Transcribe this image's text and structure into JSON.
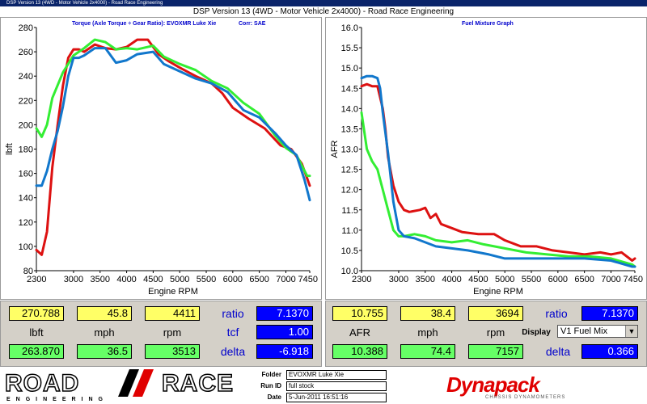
{
  "window": {
    "titlebar": "DSP Version 13 (4WD - Motor Vehicle 2x4000) - Road Race Engineering",
    "title": "DSP Version 13 (4WD - Motor Vehicle 2x4000) - Road Race Engineering"
  },
  "colors": {
    "red": "#dd1111",
    "green": "#33ee33",
    "blue": "#1177cc",
    "label_blue": "#0000cc"
  },
  "chart_data": [
    {
      "type": "line",
      "title": "Torque (Axle Torque ÷ Gear Ratio): EVOXMR Luke Xie",
      "subtitle": "Corr: SAE",
      "xlabel": "Engine RPM",
      "ylabel": "lbft",
      "xlim": [
        2300,
        7450
      ],
      "ylim": [
        80,
        280
      ],
      "xticks": [
        "2300",
        "3000",
        "3500",
        "4000",
        "4500",
        "5000",
        "5500",
        "6000",
        "6500",
        "7000",
        "7450"
      ],
      "yticks": [
        "80",
        "100",
        "120",
        "140",
        "160",
        "180",
        "200",
        "220",
        "240",
        "260",
        "280"
      ],
      "grid": false,
      "series": [
        {
          "color": "red",
          "x": [
            2300,
            2400,
            2500,
            2600,
            2700,
            2800,
            2900,
            3000,
            3100,
            3200,
            3400,
            3600,
            3800,
            4000,
            4200,
            4400,
            4600,
            4800,
            5000,
            5300,
            5600,
            5800,
            6000,
            6300,
            6600,
            6900,
            7100,
            7300,
            7450
          ],
          "y": [
            97,
            93,
            112,
            165,
            200,
            232,
            255,
            262,
            262,
            260,
            266,
            263,
            262,
            264,
            270,
            270,
            258,
            252,
            247,
            240,
            234,
            226,
            214,
            205,
            197,
            183,
            180,
            168,
            150
          ]
        },
        {
          "color": "green",
          "x": [
            2300,
            2400,
            2500,
            2600,
            2800,
            3000,
            3200,
            3400,
            3600,
            3800,
            4000,
            4200,
            4500,
            4700,
            5000,
            5300,
            5600,
            5900,
            6200,
            6500,
            6800,
            7000,
            7200,
            7400,
            7450
          ],
          "y": [
            197,
            190,
            200,
            222,
            243,
            257,
            263,
            270,
            268,
            262,
            263,
            262,
            265,
            256,
            250,
            245,
            236,
            230,
            218,
            209,
            191,
            181,
            175,
            158,
            158
          ]
        },
        {
          "color": "blue",
          "x": [
            2300,
            2400,
            2500,
            2600,
            2700,
            2800,
            2900,
            3000,
            3100,
            3200,
            3400,
            3600,
            3800,
            4000,
            4200,
            4500,
            4700,
            5000,
            5300,
            5600,
            5900,
            6200,
            6500,
            6800,
            7000,
            7200,
            7350,
            7450
          ],
          "y": [
            150,
            150,
            162,
            180,
            195,
            215,
            240,
            255,
            255,
            257,
            263,
            263,
            251,
            253,
            258,
            260,
            250,
            244,
            238,
            234,
            227,
            212,
            206,
            193,
            183,
            175,
            155,
            138
          ]
        }
      ]
    },
    {
      "type": "line",
      "title": "Fuel Mixture Graph",
      "xlabel": "Engine RPM",
      "ylabel": "AFR",
      "xlim": [
        2300,
        7450
      ],
      "ylim": [
        10.0,
        16.0
      ],
      "xticks": [
        "2300",
        "3000",
        "3500",
        "4000",
        "4500",
        "5000",
        "5500",
        "6000",
        "6500",
        "7000",
        "7450"
      ],
      "yticks": [
        "10.0",
        "10.5",
        "11.0",
        "11.5",
        "12.0",
        "12.5",
        "13.0",
        "13.5",
        "14.0",
        "14.5",
        "15.0",
        "15.5",
        "16.0"
      ],
      "grid": false,
      "series": [
        {
          "color": "red",
          "x": [
            2300,
            2400,
            2500,
            2600,
            2700,
            2750,
            2800,
            2900,
            3000,
            3100,
            3200,
            3400,
            3500,
            3600,
            3700,
            3800,
            4000,
            4200,
            4500,
            4800,
            5000,
            5300,
            5600,
            5900,
            6200,
            6500,
            6800,
            7000,
            7200,
            7400,
            7450
          ],
          "y": [
            14.55,
            14.6,
            14.55,
            14.55,
            14.0,
            13.5,
            12.8,
            12.1,
            11.7,
            11.5,
            11.45,
            11.5,
            11.55,
            11.3,
            11.4,
            11.15,
            11.05,
            10.95,
            10.9,
            10.9,
            10.75,
            10.6,
            10.6,
            10.5,
            10.45,
            10.4,
            10.45,
            10.4,
            10.45,
            10.25,
            10.3
          ]
        },
        {
          "color": "green",
          "x": [
            2300,
            2400,
            2500,
            2600,
            2700,
            2800,
            2900,
            3000,
            3100,
            3300,
            3500,
            3700,
            4000,
            4300,
            4600,
            5000,
            5400,
            5800,
            6200,
            6600,
            7000,
            7400,
            7450
          ],
          "y": [
            13.9,
            13.0,
            12.7,
            12.5,
            12.0,
            11.5,
            11.0,
            10.85,
            10.85,
            10.9,
            10.85,
            10.75,
            10.7,
            10.75,
            10.65,
            10.55,
            10.45,
            10.4,
            10.35,
            10.35,
            10.3,
            10.15,
            10.1
          ]
        },
        {
          "color": "blue",
          "x": [
            2300,
            2400,
            2500,
            2600,
            2650,
            2700,
            2800,
            2900,
            3000,
            3100,
            3300,
            3500,
            3700,
            4000,
            4300,
            4700,
            5000,
            5500,
            6000,
            6500,
            7000,
            7400,
            7450
          ],
          "y": [
            14.75,
            14.8,
            14.8,
            14.75,
            14.5,
            13.9,
            12.9,
            11.7,
            11.0,
            10.85,
            10.8,
            10.7,
            10.6,
            10.55,
            10.5,
            10.4,
            10.3,
            10.3,
            10.3,
            10.3,
            10.25,
            10.1,
            10.1
          ]
        }
      ]
    }
  ],
  "readouts_left": {
    "top_values": [
      "270.788",
      "45.8",
      "4411"
    ],
    "labels": [
      "lbft",
      "mph",
      "rpm"
    ],
    "bottom_values": [
      "263.870",
      "36.5",
      "3513"
    ],
    "ratio_label": "ratio",
    "ratio_value": "7.1370",
    "tcf_label": "tcf",
    "tcf_value": "1.00",
    "delta_label": "delta",
    "delta_value": "-6.918"
  },
  "readouts_right": {
    "top_values": [
      "10.755",
      "38.4",
      "3694"
    ],
    "labels": [
      "AFR",
      "mph",
      "rpm"
    ],
    "bottom_values": [
      "10.388",
      "74.4",
      "7157"
    ],
    "ratio_label": "ratio",
    "ratio_value": "7.1370",
    "display_label": "Display",
    "display_value": "V1 Fuel Mix",
    "delta_label": "delta",
    "delta_value": "0.366"
  },
  "footer": {
    "logo_left": "ROAD",
    "logo_right": "RACE",
    "logo_sub": "ENGINEERING",
    "folder_label": "Folder",
    "folder_value": "EVOXMR Luke  Xie",
    "runid_label": "Run ID",
    "runid_value": "full stock",
    "date_label": "Date",
    "date_value": "5-Jun-2011 16:51:16",
    "brand": "Dynapack",
    "brand_sub": "CHASSIS DYNAMOMETERS"
  }
}
